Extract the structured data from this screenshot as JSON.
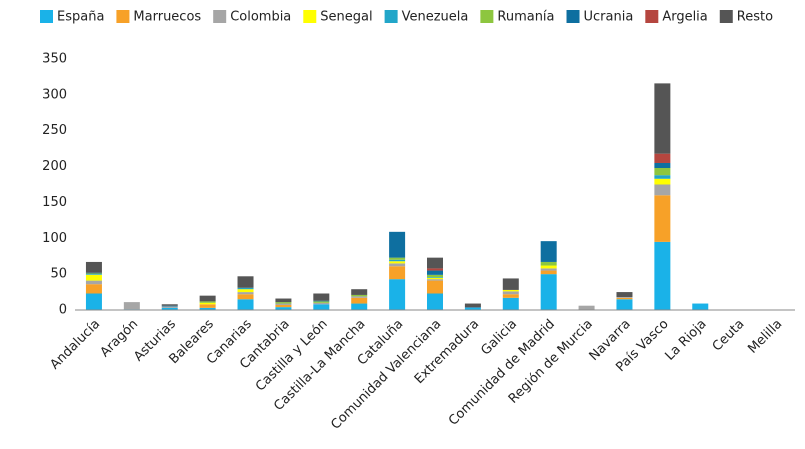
{
  "chart_data": {
    "type": "stacked_bar",
    "categories": [
      "Andalucía",
      "Aragón",
      "Asturias",
      "Baleares",
      "Canarias",
      "Cantabria",
      "Castilla y León",
      "Castilla-La Mancha",
      "Cataluña",
      "Comunidad Valenciana",
      "Extremadura",
      "Galicia",
      "Comunidad de Madrid",
      "Región de Murcia",
      "Navarra",
      "País Vasco",
      "La Rioja",
      "Ceuta",
      "Melilla"
    ],
    "series": [
      {
        "name": "España",
        "color": "#1ab2e8",
        "values": [
          23,
          1,
          3,
          3,
          15,
          4,
          8,
          9,
          43,
          23,
          3,
          17,
          50,
          0,
          15,
          95,
          9,
          0,
          0
        ]
      },
      {
        "name": "Marruecos",
        "color": "#f7a128",
        "values": [
          13,
          0,
          0,
          5,
          7,
          3,
          0,
          8,
          18,
          18,
          0,
          5,
          5,
          0,
          2,
          65,
          0,
          0,
          0
        ]
      },
      {
        "name": "Colombia",
        "color": "#a6a6a6",
        "values": [
          5,
          10,
          2,
          0,
          3,
          2,
          2,
          2,
          4,
          2,
          0,
          4,
          3,
          6,
          1,
          15,
          0,
          0,
          0
        ]
      },
      {
        "name": "Senegal",
        "color": "#ffff00",
        "values": [
          8,
          0,
          0,
          2,
          4,
          0,
          0,
          0,
          3,
          2,
          0,
          2,
          4,
          0,
          0,
          8,
          0,
          0,
          0
        ]
      },
      {
        "name": "Venezuela",
        "color": "#22a6c9",
        "values": [
          1,
          0,
          0,
          0,
          2,
          0,
          0,
          0,
          2,
          1,
          0,
          0,
          0,
          0,
          0,
          5,
          0,
          0,
          0
        ]
      },
      {
        "name": "Rumanía",
        "color": "#8dc63f",
        "values": [
          1,
          0,
          0,
          2,
          0,
          2,
          2,
          2,
          3,
          3,
          0,
          0,
          5,
          0,
          0,
          10,
          0,
          0,
          0
        ]
      },
      {
        "name": "Ucrania",
        "color": "#0e6fa0",
        "values": [
          1,
          0,
          1,
          0,
          0,
          0,
          1,
          0,
          36,
          6,
          1,
          0,
          29,
          0,
          0,
          7,
          0,
          0,
          0
        ]
      },
      {
        "name": "Argelia",
        "color": "#b5463f",
        "values": [
          0,
          0,
          0,
          0,
          0,
          0,
          0,
          0,
          0,
          3,
          0,
          0,
          0,
          0,
          0,
          13,
          0,
          0,
          0
        ]
      },
      {
        "name": "Resto",
        "color": "#555555",
        "values": [
          15,
          0,
          2,
          8,
          16,
          5,
          10,
          8,
          0,
          15,
          5,
          16,
          0,
          0,
          7,
          98,
          0,
          0,
          0
        ]
      }
    ],
    "ylim": [
      0,
      350
    ],
    "yticks": [
      0,
      50,
      100,
      150,
      200,
      250,
      300,
      350
    ],
    "grid": false,
    "legend": "top"
  }
}
